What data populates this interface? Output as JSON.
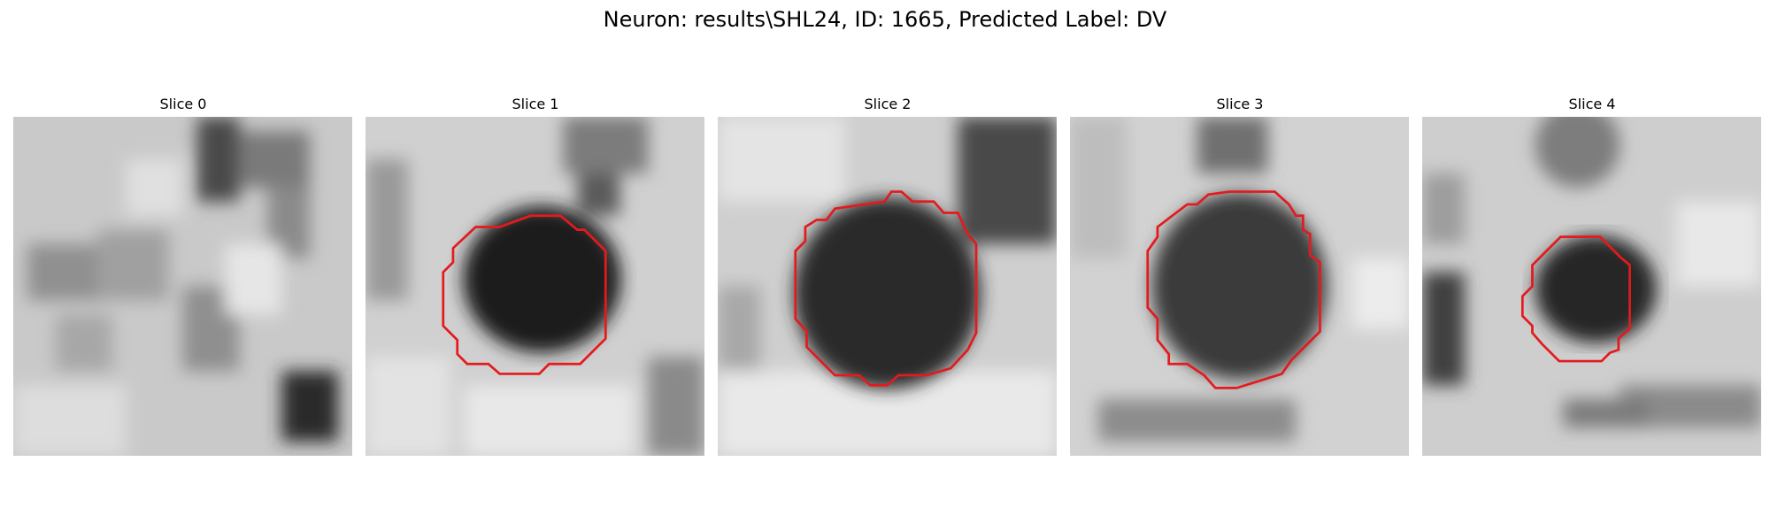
{
  "figure": {
    "title": "Neuron: results\\SHL24, ID: 1665, Predicted Label: DV"
  },
  "panels": [
    {
      "title": "Slice 0",
      "has_contour": false
    },
    {
      "title": "Slice 1",
      "has_contour": true
    },
    {
      "title": "Slice 2",
      "has_contour": true
    },
    {
      "title": "Slice 3",
      "has_contour": true
    },
    {
      "title": "Slice 4",
      "has_contour": true
    }
  ],
  "colors": {
    "contour": "#e41a1c",
    "background": "#ffffff"
  }
}
